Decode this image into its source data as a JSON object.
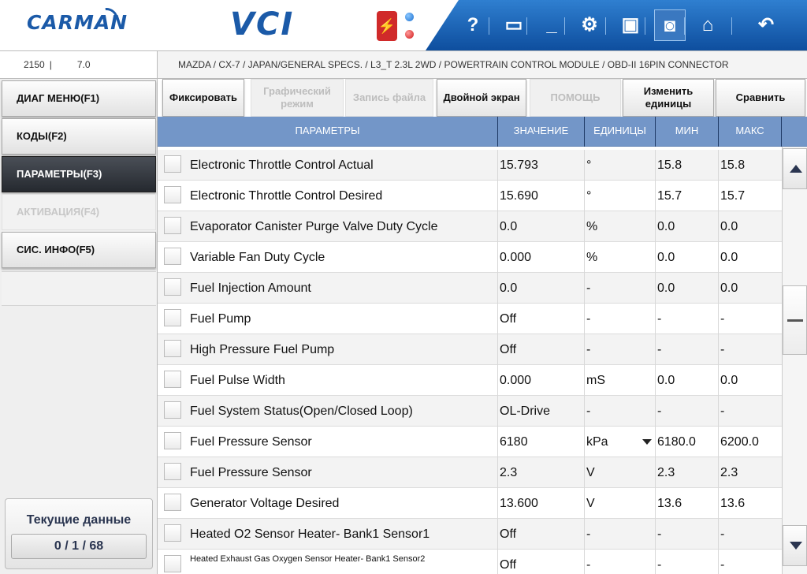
{
  "header": {
    "logo": "CARMAN",
    "product": "VCI",
    "toolbar": [
      {
        "name": "help-icon",
        "glyph": "?"
      },
      {
        "name": "window-icon",
        "glyph": "▭"
      },
      {
        "name": "minimize-icon",
        "glyph": "_"
      },
      {
        "name": "settings-icon",
        "glyph": "⚙"
      },
      {
        "name": "save-icon",
        "glyph": "▣"
      },
      {
        "name": "camera-icon",
        "glyph": "◙"
      },
      {
        "name": "home-icon",
        "glyph": "⌂"
      },
      {
        "name": "back-icon",
        "glyph": "↶"
      }
    ]
  },
  "status": {
    "code": "2150",
    "separator": "|",
    "version": "7.0",
    "path": "MAZDA / CX-7 / JAPAN/GENERAL SPECS. / L3_T 2.3L 2WD / POWERTRAIN CONTROL MODULE / OBD-II 16PIN CONNECTOR"
  },
  "nav": {
    "items": [
      {
        "label": "ДИАГ МЕНЮ(F1)",
        "state": "normal"
      },
      {
        "label": "КОДЫ(F2)",
        "state": "normal"
      },
      {
        "label": "ПАРАМЕТРЫ(F3)",
        "state": "active"
      },
      {
        "label": "АКТИВАЦИЯ(F4)",
        "state": "disabled"
      },
      {
        "label": "СИС. ИНФО(F5)",
        "state": "normal"
      }
    ],
    "current_title": "Текущие данные",
    "current_counter": "0 / 1 / 68"
  },
  "functions": [
    {
      "label": "Фиксировать",
      "enabled": true
    },
    {
      "label": "Графический режим",
      "enabled": false
    },
    {
      "label": "Запись файла",
      "enabled": false
    },
    {
      "label": "Двойной экран",
      "enabled": true
    },
    {
      "label": "ПОМОЩЬ",
      "enabled": false
    },
    {
      "label": "Изменить единицы",
      "enabled": true
    },
    {
      "label": "Сравнить",
      "enabled": true
    }
  ],
  "table": {
    "headers": {
      "param": "ПАРАМЕТРЫ",
      "value": "ЗНАЧЕНИЕ",
      "unit": "ЕДИНИЦЫ",
      "min": "МИН",
      "max": "МАКС"
    },
    "rows": [
      {
        "name": "Electronic Throttle Control Actual",
        "value": "15.793",
        "unit": "°",
        "min": "15.8",
        "max": "15.8"
      },
      {
        "name": "Electronic Throttle Control Desired",
        "value": "15.690",
        "unit": "°",
        "min": "15.7",
        "max": "15.7"
      },
      {
        "name": "Evaporator Canister Purge Valve Duty Cycle",
        "value": "0.0",
        "unit": "%",
        "min": "0.0",
        "max": "0.0"
      },
      {
        "name": "Variable Fan Duty Cycle",
        "value": "0.000",
        "unit": "%",
        "min": "0.0",
        "max": "0.0"
      },
      {
        "name": "Fuel Injection Amount",
        "value": "0.0",
        "unit": "-",
        "min": "0.0",
        "max": "0.0"
      },
      {
        "name": "Fuel Pump",
        "value": "Off",
        "unit": "-",
        "min": "-",
        "max": "-"
      },
      {
        "name": "High Pressure Fuel Pump",
        "value": "Off",
        "unit": "-",
        "min": "-",
        "max": "-"
      },
      {
        "name": "Fuel Pulse Width",
        "value": "0.000",
        "unit": "mS",
        "min": "0.0",
        "max": "0.0"
      },
      {
        "name": "Fuel System Status(Open/Closed Loop)",
        "value": "OL-Drive",
        "unit": "-",
        "min": "-",
        "max": "-"
      },
      {
        "name": "Fuel Pressure Sensor",
        "value": "6180",
        "unit": "kPa",
        "min": "6180.0",
        "max": "6200.0",
        "dropdown": true
      },
      {
        "name": "Fuel Pressure Sensor",
        "value": "2.3",
        "unit": "V",
        "min": "2.3",
        "max": "2.3"
      },
      {
        "name": "Generator Voltage Desired",
        "value": "13.600",
        "unit": "V",
        "min": "13.6",
        "max": "13.6"
      },
      {
        "name": "Heated O2 Sensor Heater- Bank1 Sensor1",
        "value": "Off",
        "unit": "-",
        "min": "-",
        "max": "-"
      },
      {
        "name": "Heated Exhaust Gas Oxygen Sensor Heater- Bank1 Sensor2",
        "value": "Off",
        "unit": "-",
        "min": "-",
        "max": "-",
        "small": true
      }
    ]
  }
}
